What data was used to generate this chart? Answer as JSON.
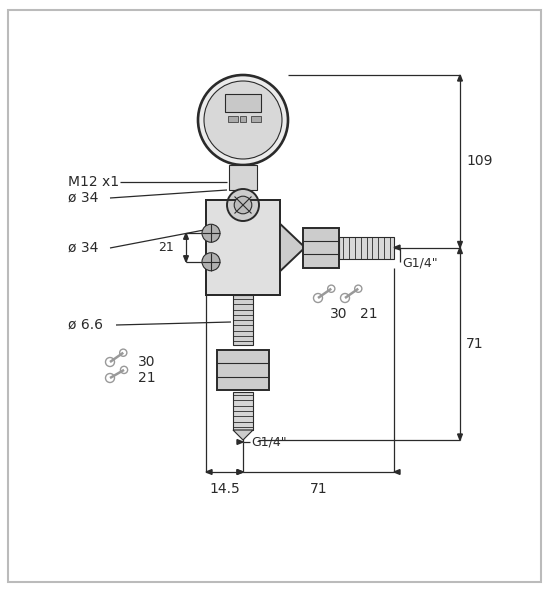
{
  "bg_color": "#ffffff",
  "line_color": "#2a2a2a",
  "dim_color": "#2a2a2a",
  "lw": 1.4,
  "lw_thin": 0.8,
  "lw_dim": 0.9,
  "lw_border": 1.2,
  "body_fill": "#e0e0e0",
  "dark_fill": "#b0b0b0",
  "mid_fill": "#cccccc",
  "light_fill": "#ebebeb",
  "annotations": {
    "M12x1": "M12 x1",
    "phi34_top": "ø 34",
    "phi34_mid": "ø 34",
    "phi66": "ø 6.6",
    "dim_21": "21",
    "dim_109": "109",
    "dim_71_right": "71",
    "dim_30_right": "30",
    "dim_21_right": "21",
    "dim_G14_right": "G1/4\"",
    "dim_30_bot": "30",
    "dim_21_bot": "21",
    "dim_G14_bot": "G1/4\"",
    "dim_145": "14.5",
    "dim_71_bot": "71"
  }
}
